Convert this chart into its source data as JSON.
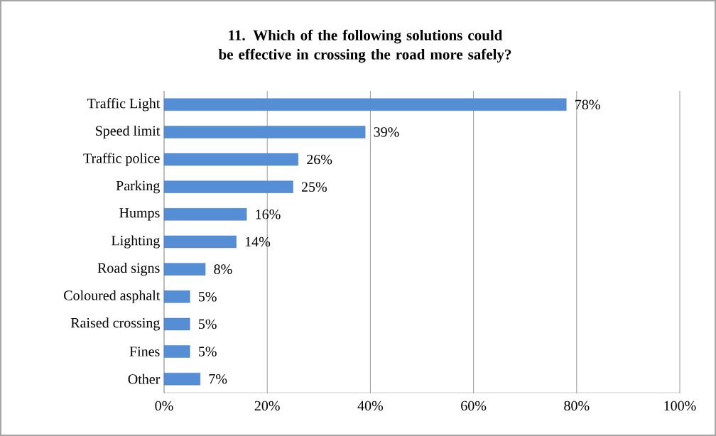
{
  "chart_data": {
    "type": "bar",
    "orientation": "horizontal",
    "title": "11. Which of the following solutions could be effective in crossing the road more safely?",
    "categories": [
      "Traffic Light",
      "Speed limit",
      "Traffic police",
      "Parking",
      "Humps",
      "Lighting",
      "Road signs",
      "Coloured asphalt",
      "Raised crossing",
      "Fines",
      "Other"
    ],
    "values": [
      78,
      39,
      26,
      25,
      16,
      14,
      8,
      5,
      5,
      5,
      7
    ],
    "value_labels": [
      "78%",
      "39%",
      "26%",
      "25%",
      "16%",
      "14%",
      "8%",
      "5%",
      "5%",
      "5%",
      "7%"
    ],
    "color": "#558ed5",
    "xlim": [
      0,
      100
    ],
    "xticks": [
      {
        "value": 0,
        "label": "0%"
      },
      {
        "value": 20,
        "label": "20%"
      },
      {
        "value": 40,
        "label": "40%"
      },
      {
        "value": 60,
        "label": "60%"
      },
      {
        "value": 80,
        "label": "80%"
      },
      {
        "value": 100,
        "label": "100%"
      }
    ],
    "grid": "x"
  }
}
